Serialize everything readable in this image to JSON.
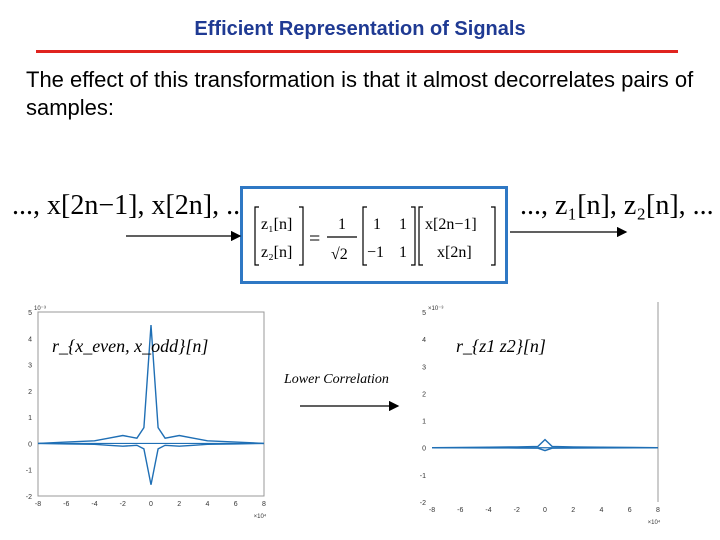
{
  "slide": {
    "title": "Efficient Representation of Signals",
    "body": "The effect of this transformation is that it almost decorrelates pairs of samples:"
  },
  "equation": {
    "input_sequence": "..., x[2n−1], x[2n], ...",
    "output_sequence": "..., z₁[n], z₂[n], ...",
    "lhs": [
      "z₁[n]",
      "z₂[n]"
    ],
    "factor_num": "1",
    "factor_den": "√2",
    "matrix": [
      [
        "1",
        "1"
      ],
      [
        "−1",
        "1"
      ]
    ],
    "rhs": [
      "x[2n−1]",
      "x[2n]"
    ]
  },
  "arrow_label": "Lower Correlation",
  "colors": {
    "title": "#1f3a93",
    "rule": "#e0231f",
    "box": "#2f78c4",
    "signal": "#1f6fb5"
  },
  "chart_data": [
    {
      "type": "line",
      "annotation": "r_{x_even, x_odd}[n]",
      "exponent_y": "10⁻³",
      "exponent_x": "×10⁴",
      "xlim": [
        -8,
        8
      ],
      "ylim": [
        -2,
        5
      ],
      "xticks": [
        "-8",
        "-6",
        "-4",
        "-2",
        "0",
        "2",
        "4",
        "6",
        "8"
      ],
      "yticks": [
        "-2",
        "-1",
        "0",
        "1",
        "2",
        "3",
        "4",
        "5"
      ],
      "x": [
        -8,
        -6,
        -4,
        -3,
        -2,
        -1,
        -0.5,
        0,
        0.5,
        1,
        2,
        3,
        4,
        6,
        8
      ],
      "y": [
        0,
        0.05,
        0.1,
        0.2,
        0.3,
        0.2,
        0.6,
        4.5,
        0.6,
        0.2,
        0.3,
        0.2,
        0.1,
        0.05,
        0
      ]
    },
    {
      "type": "line",
      "annotation": "r_{z1 z2}[n]",
      "exponent_y": "×10⁻³",
      "exponent_x": "×10⁴",
      "xlim": [
        -8,
        8
      ],
      "ylim": [
        -2,
        5
      ],
      "xticks": [
        "-8",
        "-6",
        "-4",
        "-2",
        "0",
        "2",
        "4",
        "6",
        "8"
      ],
      "yticks": [
        "-2",
        "-1",
        "0",
        "1",
        "2",
        "3",
        "4",
        "5"
      ],
      "x": [
        -8,
        -4,
        -2,
        -0.5,
        0,
        0.5,
        2,
        4,
        8
      ],
      "y": [
        0,
        0.02,
        0.03,
        0.05,
        0.3,
        0.05,
        0.03,
        0.02,
        0
      ]
    }
  ]
}
